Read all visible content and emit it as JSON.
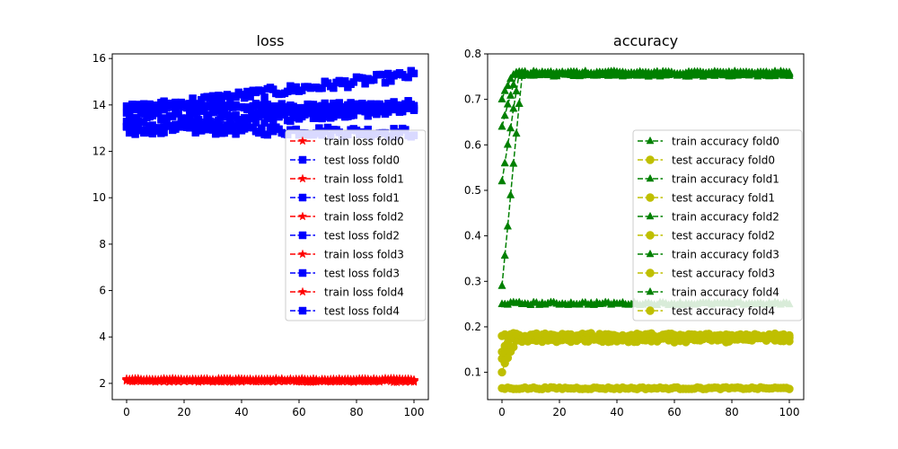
{
  "chart_data": [
    {
      "type": "line",
      "title": "loss",
      "xlabel": "",
      "ylabel": "",
      "xlim": [
        -5,
        105
      ],
      "ylim": [
        1.3,
        16.2
      ],
      "xticks": [
        0,
        20,
        40,
        60,
        80,
        100
      ],
      "yticks": [
        2,
        4,
        6,
        8,
        10,
        12,
        14,
        16
      ],
      "legend_position": "center-right",
      "series": [
        {
          "name": "train loss fold0",
          "color": "#ff0000",
          "marker": "star",
          "level": 2.13,
          "noise": 0.06
        },
        {
          "name": "test loss fold0",
          "color": "#0000ff",
          "marker": "square",
          "start": 13.9,
          "end": 14.0,
          "noise": 0.12
        },
        {
          "name": "train loss fold1",
          "color": "#ff0000",
          "marker": "star",
          "level": 2.12,
          "noise": 0.06
        },
        {
          "name": "test loss fold1",
          "color": "#0000ff",
          "marker": "square",
          "start": 13.0,
          "end": 12.8,
          "noise": 0.2
        },
        {
          "name": "train loss fold2",
          "color": "#ff0000",
          "marker": "star",
          "level": 2.14,
          "noise": 0.06
        },
        {
          "name": "test loss fold2",
          "color": "#0000ff",
          "marker": "square",
          "start": 13.8,
          "end": 15.3,
          "noise": 0.2
        },
        {
          "name": "train loss fold3",
          "color": "#ff0000",
          "marker": "star",
          "level": 2.11,
          "noise": 0.06
        },
        {
          "name": "test loss fold3",
          "color": "#0000ff",
          "marker": "square",
          "start": 12.9,
          "end": 14.0,
          "noise": 0.25
        },
        {
          "name": "train loss fold4",
          "color": "#ff0000",
          "marker": "star",
          "level": 2.15,
          "noise": 0.06
        },
        {
          "name": "test loss fold4",
          "color": "#0000ff",
          "marker": "square",
          "start": 13.4,
          "end": 13.8,
          "noise": 0.25
        }
      ]
    },
    {
      "type": "line",
      "title": "accuracy",
      "xlabel": "",
      "ylabel": "",
      "xlim": [
        -5,
        105
      ],
      "ylim": [
        0.04,
        0.8
      ],
      "xticks": [
        0,
        20,
        40,
        60,
        80,
        100
      ],
      "yticks": [
        0.1,
        0.2,
        0.3,
        0.4,
        0.5,
        0.6,
        0.7,
        0.8
      ],
      "legend_position": "center-right",
      "series": [
        {
          "name": "train accuracy fold0",
          "color": "#008000",
          "marker": "triangle",
          "start": 0.64,
          "plateau": 0.757,
          "rise": 5,
          "noise": 0.004
        },
        {
          "name": "test accuracy fold0",
          "color": "#bfbf00",
          "marker": "circle",
          "start": 0.13,
          "plateau": 0.178,
          "rise": 3,
          "noise": 0.006
        },
        {
          "name": "train accuracy fold1",
          "color": "#008000",
          "marker": "triangle",
          "start": 0.52,
          "plateau": 0.756,
          "rise": 6,
          "noise": 0.004
        },
        {
          "name": "test accuracy fold1",
          "color": "#bfbf00",
          "marker": "circle",
          "start": 0.1,
          "plateau": 0.172,
          "rise": 5,
          "noise": 0.006
        },
        {
          "name": "train accuracy fold2",
          "color": "#008000",
          "marker": "triangle",
          "start": 0.7,
          "plateau": 0.758,
          "rise": 4,
          "noise": 0.004
        },
        {
          "name": "test accuracy fold2",
          "color": "#bfbf00",
          "marker": "circle",
          "start": 0.065,
          "plateau": 0.065,
          "rise": 1,
          "noise": 0.002
        },
        {
          "name": "train accuracy fold3",
          "color": "#008000",
          "marker": "triangle",
          "start": 0.25,
          "plateau": 0.251,
          "rise": 1,
          "noise": 0.003
        },
        {
          "name": "test accuracy fold3",
          "color": "#bfbf00",
          "marker": "circle",
          "start": 0.18,
          "plateau": 0.176,
          "rise": 2,
          "noise": 0.006
        },
        {
          "name": "train accuracy fold4",
          "color": "#008000",
          "marker": "triangle",
          "start": 0.29,
          "plateau": 0.754,
          "rise": 7,
          "noise": 0.004
        },
        {
          "name": "test accuracy fold4",
          "color": "#bfbf00",
          "marker": "circle",
          "start": 0.145,
          "plateau": 0.18,
          "rise": 3,
          "noise": 0.006
        }
      ]
    }
  ]
}
